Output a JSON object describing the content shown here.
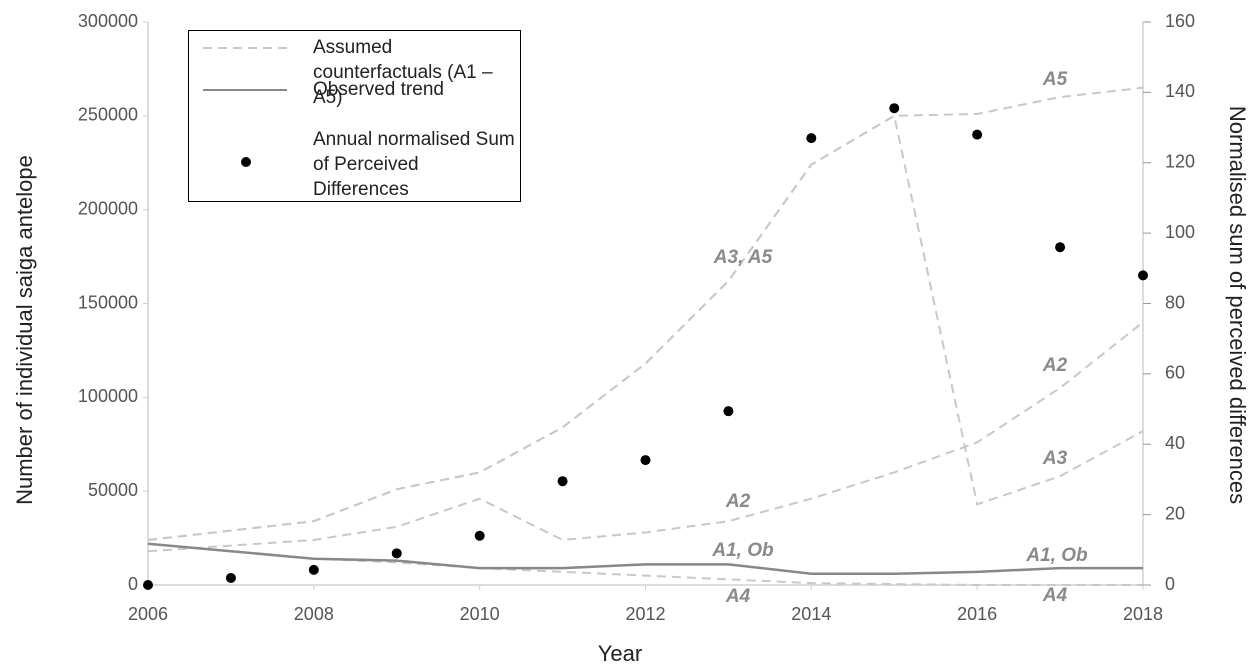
{
  "chart_data": {
    "type": "line",
    "xlabel": "Year",
    "ylabel": "Number of individual saiga antelope",
    "y2label": "Normalised sum of perceived differences",
    "x": [
      2006,
      2007,
      2008,
      2009,
      2010,
      2011,
      2012,
      2013,
      2014,
      2015,
      2016,
      2017,
      2018
    ],
    "xlim": [
      2006,
      2018
    ],
    "xticks": [
      2006,
      2008,
      2010,
      2012,
      2014,
      2016,
      2018
    ],
    "ylim": [
      0,
      300000
    ],
    "yticks": [
      0,
      50000,
      100000,
      150000,
      200000,
      250000,
      300000
    ],
    "y2lim": [
      0,
      160
    ],
    "y2ticks": [
      0,
      20,
      40,
      60,
      80,
      100,
      120,
      140,
      160
    ],
    "legend": [
      {
        "label": "Assumed counterfactuals (A1 – A5)",
        "style": "dashed",
        "color": "#c8c8c8"
      },
      {
        "label": "Observed trend",
        "style": "solid",
        "color": "#888888"
      },
      {
        "label": "Annual normalised Sum of Perceived Differences",
        "style": "dot",
        "color": "#000000"
      }
    ],
    "series": [
      {
        "style": "dashed",
        "color": "#c8c8c8",
        "values": [
          24000,
          29000,
          34000,
          51000,
          60000,
          84000,
          118000,
          162000,
          224000,
          250000,
          251000,
          260000,
          265000
        ]
      },
      {
        "style": "dashed",
        "color": "#c8c8c8",
        "values": [
          24000,
          29000,
          34000,
          51000,
          60000,
          84000,
          118000,
          162000,
          224000,
          250000,
          43000,
          58000,
          82000
        ]
      },
      {
        "style": "dashed",
        "color": "#c8c8c8",
        "values": [
          18000,
          21000,
          24000,
          31000,
          46000,
          24000,
          28000,
          34000,
          46000,
          60000,
          76000,
          105000,
          140000
        ]
      },
      {
        "style": "dashed",
        "color": "#c8c8c8",
        "values": [
          22000,
          18000,
          14000,
          12000,
          9000,
          7000,
          5000,
          3000,
          1000,
          500,
          0,
          0,
          0
        ]
      },
      {
        "style": "solid",
        "color": "#888888",
        "values": [
          22000,
          18000,
          14000,
          13000,
          9000,
          9000,
          11000,
          11000,
          6000,
          6000,
          7000,
          9000,
          9000
        ]
      },
      {
        "style": "dot",
        "axis": "y2",
        "color": "#000000",
        "values": [
          0,
          2,
          4.3,
          9,
          14,
          29.5,
          35.5,
          49.4,
          127,
          135.5,
          128,
          96,
          88
        ]
      }
    ],
    "annotations": [
      "A5",
      "A3, A5",
      "A2",
      "A2",
      "A3",
      "A1, Ob",
      "A1, Ob",
      "A4",
      "A4"
    ]
  }
}
